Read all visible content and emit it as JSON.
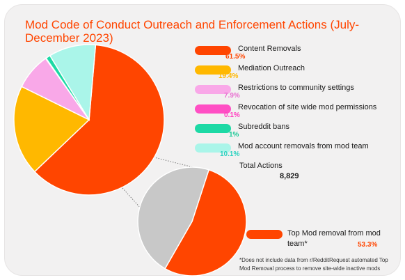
{
  "colors": {
    "card_bg": "#f2f1f1",
    "title": "#ff4500",
    "connector": "#777777"
  },
  "chart_data": [
    {
      "type": "pie",
      "title": "Mod Code of Conduct Outreach and Enforcement Actions (July-December 2023)",
      "slices": [
        {
          "label": "Content Removals",
          "value": 61.5,
          "display": "61.5%",
          "color": "#ff4500",
          "value_color": "#ff4500"
        },
        {
          "label": "Mediation Outreach",
          "value": 19.4,
          "display": "19.4%",
          "color": "#ffb800",
          "value_color": "#ffb800"
        },
        {
          "label": "Restrictions to community settings",
          "value": 7.9,
          "display": "7.9%",
          "color": "#f9a8e8",
          "value_color": "#e86fd0"
        },
        {
          "label": "Revocation of site wide mod permissions",
          "value": 0.1,
          "display": "0.1%",
          "color": "#ff4fc4",
          "value_color": "#ff3fbf"
        },
        {
          "label": "Subreddit bans",
          "value": 1,
          "display": "1%",
          "color": "#1dd9a5",
          "value_color": "#18c895"
        },
        {
          "label": "Mod account removals from mod team",
          "value": 10.1,
          "display": "10.1%",
          "color": "#aaf5e9",
          "value_color": "#2bd2c0"
        }
      ],
      "total": {
        "label": "Total Actions",
        "value": "8,829"
      }
    },
    {
      "type": "pie",
      "title": "",
      "slices": [
        {
          "label": "Top Mod removal from mod team*",
          "value": 53.3,
          "display": "53.3%",
          "color": "#ff4500",
          "value_color": "#ff4500"
        },
        {
          "label": "",
          "value": 46.7,
          "display": "",
          "color": "#c8c8c8",
          "value_color": ""
        }
      ],
      "footnote": "*Does not include data from r/RedditRequest automated Top Mod Removal process to remove site-wide inactive mods"
    }
  ]
}
